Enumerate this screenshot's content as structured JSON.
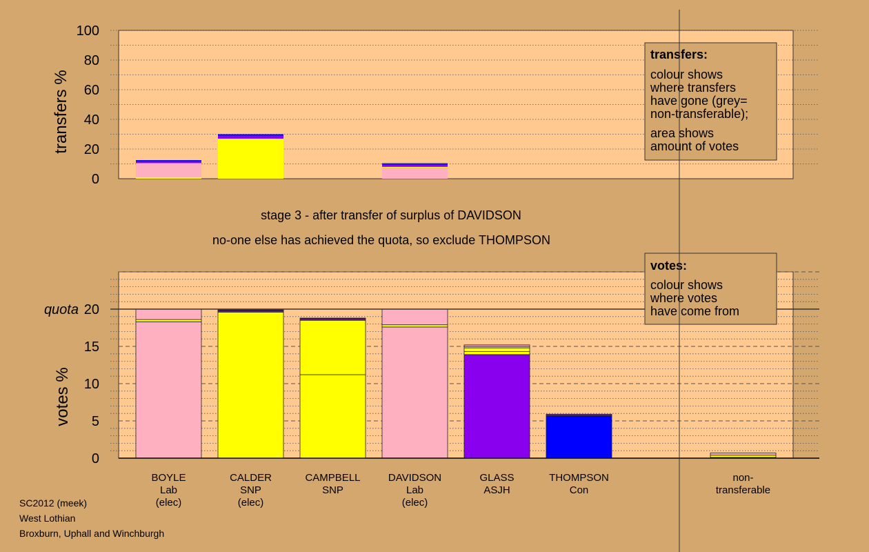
{
  "chart_data": [
    {
      "type": "bar",
      "title": "",
      "ylabel": "transfers %",
      "ylim": [
        0,
        100
      ],
      "yticks": [
        0,
        20,
        40,
        60,
        80,
        100
      ],
      "categories": [
        "BOYLE",
        "CALDER",
        "CAMPBELL",
        "DAVIDSON",
        "GLASS",
        "THOMPSON",
        "non-transferable"
      ],
      "stacks": [
        [
          {
            "value": 1,
            "color": "#ffff00"
          },
          {
            "value": 9.5,
            "color": "#ffb0c0"
          },
          {
            "value": 1,
            "color": "#8800ee"
          },
          {
            "value": 1,
            "color": "#0000ff"
          }
        ],
        [
          {
            "value": 27,
            "color": "#ffff00"
          },
          {
            "value": 2,
            "color": "#8800ee"
          },
          {
            "value": 1,
            "color": "#0000ff"
          }
        ],
        [],
        [
          {
            "value": 7.5,
            "color": "#ffb0c0"
          },
          {
            "value": 0.5,
            "color": "#ffff00"
          },
          {
            "value": 1.5,
            "color": "#8800ee"
          },
          {
            "value": 0.8,
            "color": "#0000ff"
          },
          {
            "value": 0.5,
            "color": "#a0a0a0"
          }
        ],
        [],
        [],
        []
      ],
      "legend": {
        "heading": "transfers:",
        "lines": [
          "colour shows",
          "where transfers",
          "have gone (grey=",
          "non-transferable);"
        ],
        "lines2": [
          "area shows",
          "amount of votes"
        ]
      }
    },
    {
      "type": "bar",
      "title": "",
      "ylabel": "votes %",
      "ylim": [
        0,
        25
      ],
      "yticks": [
        0,
        5,
        10,
        15,
        20
      ],
      "quota": 20,
      "quota_label": "quota",
      "categories": [
        "BOYLE",
        "CALDER",
        "CAMPBELL",
        "DAVIDSON",
        "GLASS",
        "THOMPSON",
        "non-transferable"
      ],
      "stacks": [
        [
          {
            "value": 18.3,
            "color": "#ffb0c0"
          },
          {
            "value": 0.3,
            "color": "#ffff00"
          },
          {
            "value": 1.4,
            "color": "#ffb0c0"
          }
        ],
        [
          {
            "value": 19.6,
            "color": "#ffff00"
          },
          {
            "value": 0.2,
            "color": "#8800ee"
          },
          {
            "value": 0.1,
            "color": "#0000ff"
          }
        ],
        [
          {
            "value": 11.2,
            "color": "#ffff00"
          },
          {
            "value": 7.3,
            "color": "#ffff00"
          },
          {
            "value": 0.2,
            "color": "#8800ee"
          },
          {
            "value": 0.1,
            "color": "#0000ff"
          }
        ],
        [
          {
            "value": 17.6,
            "color": "#ffb0c0"
          },
          {
            "value": 0.3,
            "color": "#ffff00"
          },
          {
            "value": 2.1,
            "color": "#ffb0c0"
          }
        ],
        [
          {
            "value": 13.9,
            "color": "#8800ee"
          },
          {
            "value": 0.4,
            "color": "#ffff00"
          },
          {
            "value": 0.5,
            "color": "#ffff00"
          },
          {
            "value": 0.2,
            "color": "#ffb0c0"
          },
          {
            "value": 0.2,
            "color": "#ffb0c0"
          }
        ],
        [
          {
            "value": 5.7,
            "color": "#0000ff"
          },
          {
            "value": 0.2,
            "color": "#8800ee"
          }
        ],
        [
          {
            "value": 0.1,
            "color": "#ffb0c0"
          },
          {
            "value": 0.3,
            "color": "#ffff00"
          },
          {
            "value": 0.3,
            "color": "#ffb0c0"
          }
        ]
      ],
      "legend": {
        "heading": "votes:",
        "lines": [
          "colour shows",
          "where votes",
          "have come from"
        ]
      }
    }
  ],
  "stage_text": "stage 3 - after transfer of surplus of DAVIDSON",
  "action_text": "no-one else has achieved the quota, so exclude THOMPSON",
  "candidates": [
    {
      "lines": [
        "BOYLE",
        "Lab",
        "(elec)"
      ]
    },
    {
      "lines": [
        "CALDER",
        "SNP",
        "(elec)"
      ]
    },
    {
      "lines": [
        "CAMPBELL",
        "SNP"
      ]
    },
    {
      "lines": [
        "DAVIDSON",
        "Lab",
        "(elec)"
      ]
    },
    {
      "lines": [
        "GLASS",
        "ASJH"
      ]
    },
    {
      "lines": [
        "THOMPSON",
        "Con"
      ]
    },
    {
      "lines": [
        "non-",
        "transferable"
      ]
    }
  ],
  "footer": [
    "SC2012 (meek)",
    "West Lothian",
    "Broxburn, Uphall and Winchburgh"
  ],
  "colors": {
    "background": "#d4a76f",
    "plot_bg": "#ffc990",
    "pink": "#ffb0c0",
    "yellow": "#ffff00",
    "purple": "#8800ee",
    "blue": "#0000ff",
    "grey": "#a0a0a0"
  }
}
